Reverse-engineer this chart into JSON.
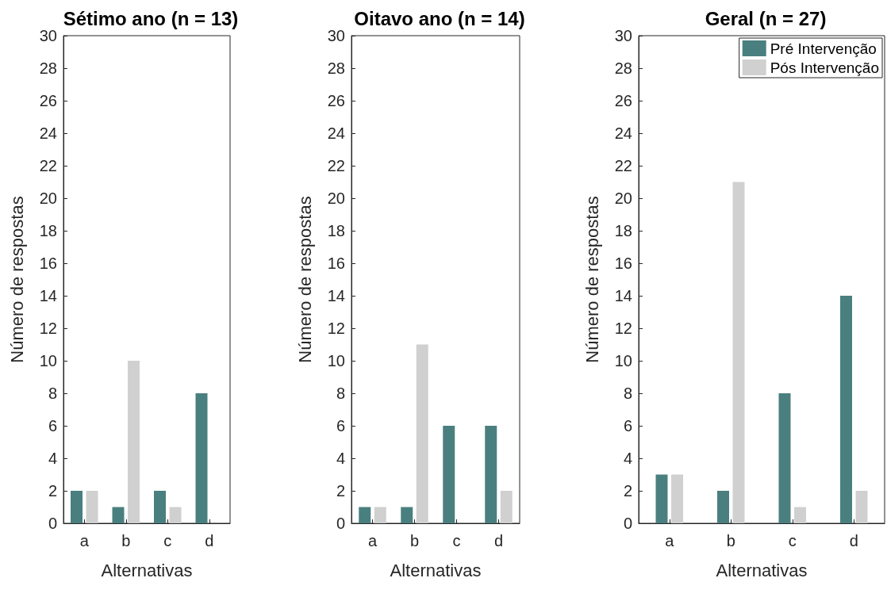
{
  "chart_data": [
    {
      "type": "bar",
      "title": "Sétimo ano (n = 13)",
      "xlabel": "Alternativas",
      "ylabel": "Número de respostas",
      "categories": [
        "a",
        "b",
        "c",
        "d"
      ],
      "ylim": [
        0,
        30
      ],
      "yticks": [
        0,
        2,
        4,
        6,
        8,
        10,
        12,
        14,
        16,
        18,
        20,
        22,
        24,
        26,
        28,
        30
      ],
      "grid": false,
      "legend": false,
      "series": [
        {
          "color": "#4a7f7f",
          "values": [
            2,
            1,
            2,
            8
          ]
        },
        {
          "color": "#d0d0d0",
          "values": [
            2,
            10,
            1,
            0
          ]
        }
      ]
    },
    {
      "type": "bar",
      "title": "Oitavo ano (n = 14)",
      "xlabel": "Alternativas",
      "ylabel": "Número de respostas",
      "categories": [
        "a",
        "b",
        "c",
        "d"
      ],
      "ylim": [
        0,
        30
      ],
      "yticks": [
        0,
        2,
        4,
        6,
        8,
        10,
        12,
        14,
        16,
        18,
        20,
        22,
        24,
        26,
        28,
        30
      ],
      "grid": false,
      "legend": false,
      "series": [
        {
          "color": "#4a7f7f",
          "values": [
            1,
            1,
            6,
            6
          ]
        },
        {
          "color": "#d0d0d0",
          "values": [
            1,
            11,
            0,
            2
          ]
        }
      ]
    },
    {
      "type": "bar",
      "title": "Geral (n = 27)",
      "xlabel": "Alternativas",
      "ylabel": "Número de respostas",
      "categories": [
        "a",
        "b",
        "c",
        "d"
      ],
      "ylim": [
        0,
        30
      ],
      "yticks": [
        0,
        2,
        4,
        6,
        8,
        10,
        12,
        14,
        16,
        18,
        20,
        22,
        24,
        26,
        28,
        30
      ],
      "grid": false,
      "legend": "top right",
      "series": [
        {
          "name": "Pré Intervenção",
          "color": "#4a7f7f",
          "values": [
            3,
            2,
            8,
            14
          ]
        },
        {
          "name": "Pós Intervenção",
          "color": "#d0d0d0",
          "values": [
            3,
            21,
            1,
            2
          ]
        }
      ]
    }
  ]
}
